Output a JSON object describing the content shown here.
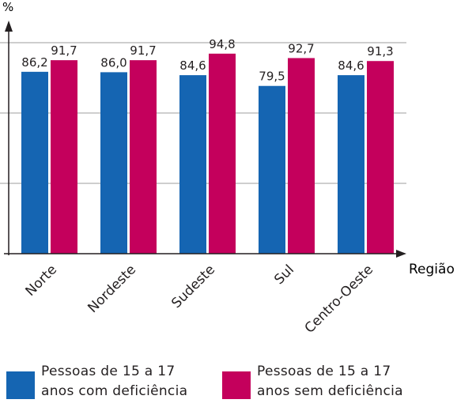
{
  "chart_data": {
    "type": "bar",
    "y_unit_label": "%",
    "xlabel": "Região",
    "categories": [
      "Norte",
      "Nordeste",
      "Sudeste",
      "Sul",
      "Centro-Oeste"
    ],
    "series": [
      {
        "name": "Pessoas de 15 a 17 anos com deficiência",
        "color": "#1565b2",
        "values": [
          86.2,
          86.0,
          84.6,
          79.5,
          84.6
        ],
        "value_labels": [
          "86,2",
          "86,0",
          "84,6",
          "79,5",
          "84,6"
        ]
      },
      {
        "name": "Pessoas de 15 a 17 anos sem deficiência",
        "color": "#c4005c",
        "values": [
          91.7,
          91.7,
          94.8,
          92.7,
          91.3
        ],
        "value_labels": [
          "91,7",
          "91,7",
          "94,8",
          "92,7",
          "91,3"
        ]
      }
    ],
    "ylim": [
      0,
      100
    ],
    "grid": true
  },
  "legend": {
    "items": [
      {
        "line1": "Pessoas de 15 a 17",
        "line2": "anos com deficiência",
        "color": "#1565b2"
      },
      {
        "line1": "Pessoas de 15 a 17",
        "line2": "anos sem deficiência",
        "color": "#c4005c"
      }
    ]
  }
}
